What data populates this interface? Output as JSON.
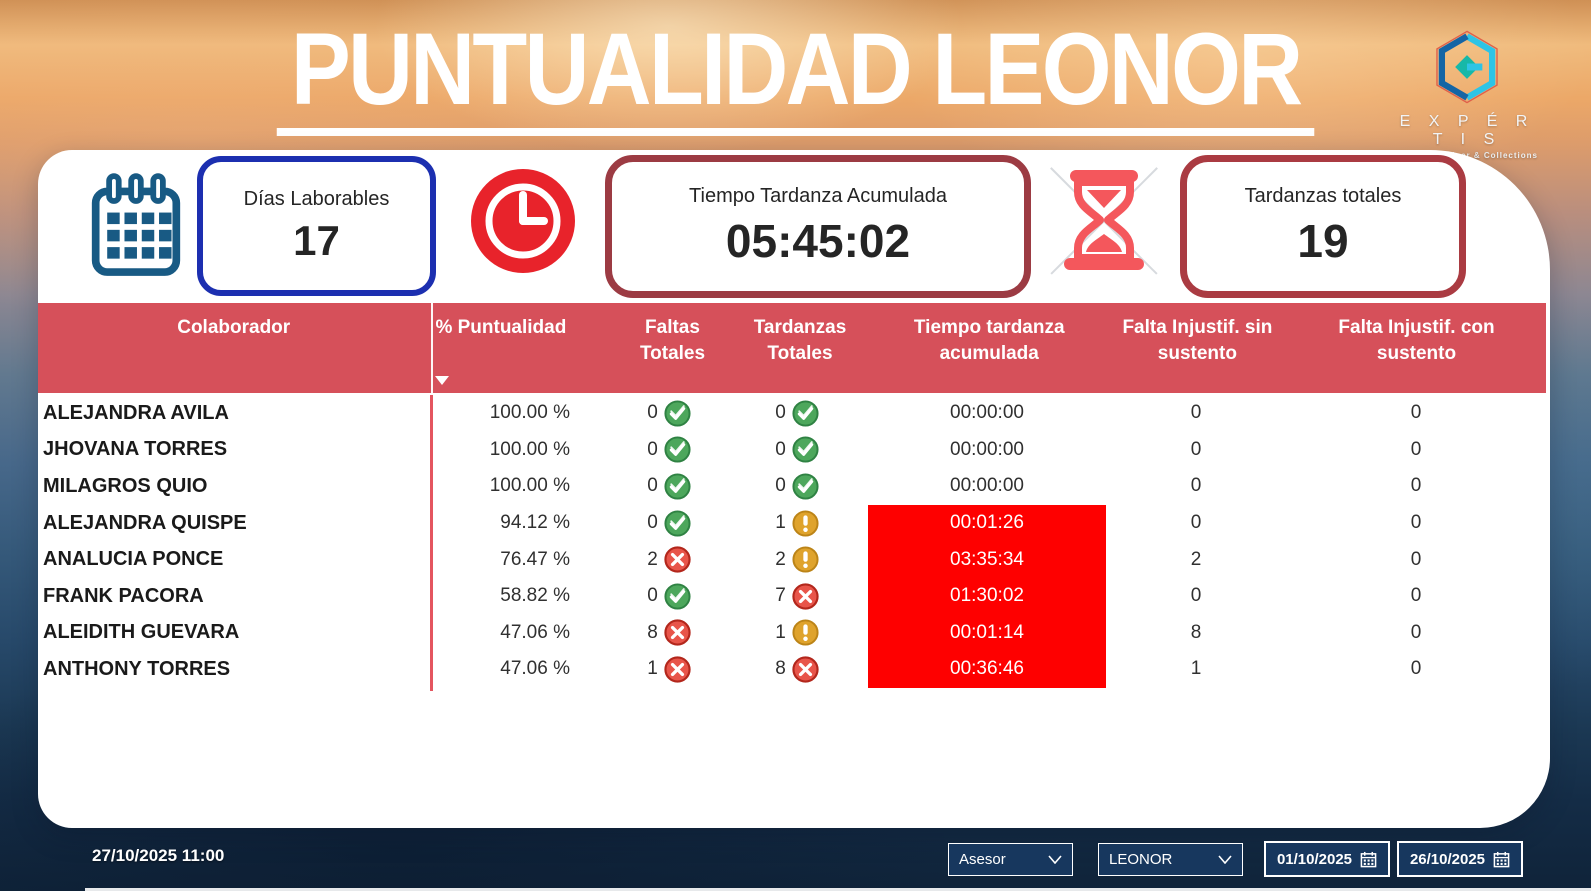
{
  "title": "PUNTUALIDAD LEONOR",
  "logo": {
    "brand": "E X P É R T I S",
    "tagline": "Master Servicer & Collections"
  },
  "kpis": {
    "dias_laborables": {
      "label": "Días Laborables",
      "value": "17"
    },
    "tiempo_tardanza": {
      "label": "Tiempo Tardanza Acumulada",
      "value": "05:45:02"
    },
    "tardanzas_totales": {
      "label": "Tardanzas totales",
      "value": "19"
    }
  },
  "table": {
    "columns": [
      {
        "line1": "Colaborador",
        "line2": ""
      },
      {
        "line1": "% Puntualidad",
        "line2": ""
      },
      {
        "line1": "Faltas",
        "line2": "Totales"
      },
      {
        "line1": "Tardanzas",
        "line2": "Totales"
      },
      {
        "line1": "Tiempo tardanza",
        "line2": "acumulada"
      },
      {
        "line1": "Falta Injustif. sin",
        "line2": "sustento"
      },
      {
        "line1": "Falta Injustif. con",
        "line2": "sustento"
      }
    ],
    "sort_column": "% Puntualidad",
    "rows": [
      {
        "colaborador": "ALEJANDRA AVILA",
        "puntualidad": "100.00 %",
        "faltas": "0",
        "faltas_status": "ok",
        "tardanzas": "0",
        "tardanzas_status": "ok",
        "tiempo": "00:00:00",
        "tiempo_alert": false,
        "sin_sustento": "0",
        "con_sustento": "0"
      },
      {
        "colaborador": "JHOVANA TORRES",
        "puntualidad": "100.00 %",
        "faltas": "0",
        "faltas_status": "ok",
        "tardanzas": "0",
        "tardanzas_status": "ok",
        "tiempo": "00:00:00",
        "tiempo_alert": false,
        "sin_sustento": "0",
        "con_sustento": "0"
      },
      {
        "colaborador": "MILAGROS QUIO",
        "puntualidad": "100.00 %",
        "faltas": "0",
        "faltas_status": "ok",
        "tardanzas": "0",
        "tardanzas_status": "ok",
        "tiempo": "00:00:00",
        "tiempo_alert": false,
        "sin_sustento": "0",
        "con_sustento": "0"
      },
      {
        "colaborador": "ALEJANDRA QUISPE",
        "puntualidad": "94.12 %",
        "faltas": "0",
        "faltas_status": "ok",
        "tardanzas": "1",
        "tardanzas_status": "warn",
        "tiempo": "00:01:26",
        "tiempo_alert": true,
        "sin_sustento": "0",
        "con_sustento": "0"
      },
      {
        "colaborador": "ANALUCIA PONCE",
        "puntualidad": "76.47 %",
        "faltas": "2",
        "faltas_status": "bad",
        "tardanzas": "2",
        "tardanzas_status": "warn",
        "tiempo": "03:35:34",
        "tiempo_alert": true,
        "sin_sustento": "2",
        "con_sustento": "0"
      },
      {
        "colaborador": "FRANK PACORA",
        "puntualidad": "58.82 %",
        "faltas": "0",
        "faltas_status": "ok",
        "tardanzas": "7",
        "tardanzas_status": "bad",
        "tiempo": "01:30:02",
        "tiempo_alert": true,
        "sin_sustento": "0",
        "con_sustento": "0"
      },
      {
        "colaborador": "ALEIDITH GUEVARA",
        "puntualidad": "47.06 %",
        "faltas": "8",
        "faltas_status": "bad",
        "tardanzas": "1",
        "tardanzas_status": "warn",
        "tiempo": "00:01:14",
        "tiempo_alert": true,
        "sin_sustento": "8",
        "con_sustento": "0"
      },
      {
        "colaborador": "ANTHONY TORRES",
        "puntualidad": "47.06 %",
        "faltas": "1",
        "faltas_status": "bad",
        "tardanzas": "8",
        "tardanzas_status": "bad",
        "tiempo": "00:36:46",
        "tiempo_alert": true,
        "sin_sustento": "1",
        "con_sustento": "0"
      }
    ]
  },
  "footer": {
    "timestamp": "27/10/2025 11:00",
    "filter_asesor": "Asesor",
    "filter_campaign": "LEONOR",
    "date_from": "01/10/2025",
    "date_to": "26/10/2025"
  },
  "colors": {
    "header_red": "#d6505a",
    "alert_red": "#fe0000",
    "card_blue_border": "#1c2fb0",
    "card_red_border": "#9c3b43",
    "status_ok_green": "#4da75c",
    "status_warn_amber": "#dfa32c",
    "status_bad_red": "#e8554a",
    "filter_navy": "#17375e"
  }
}
